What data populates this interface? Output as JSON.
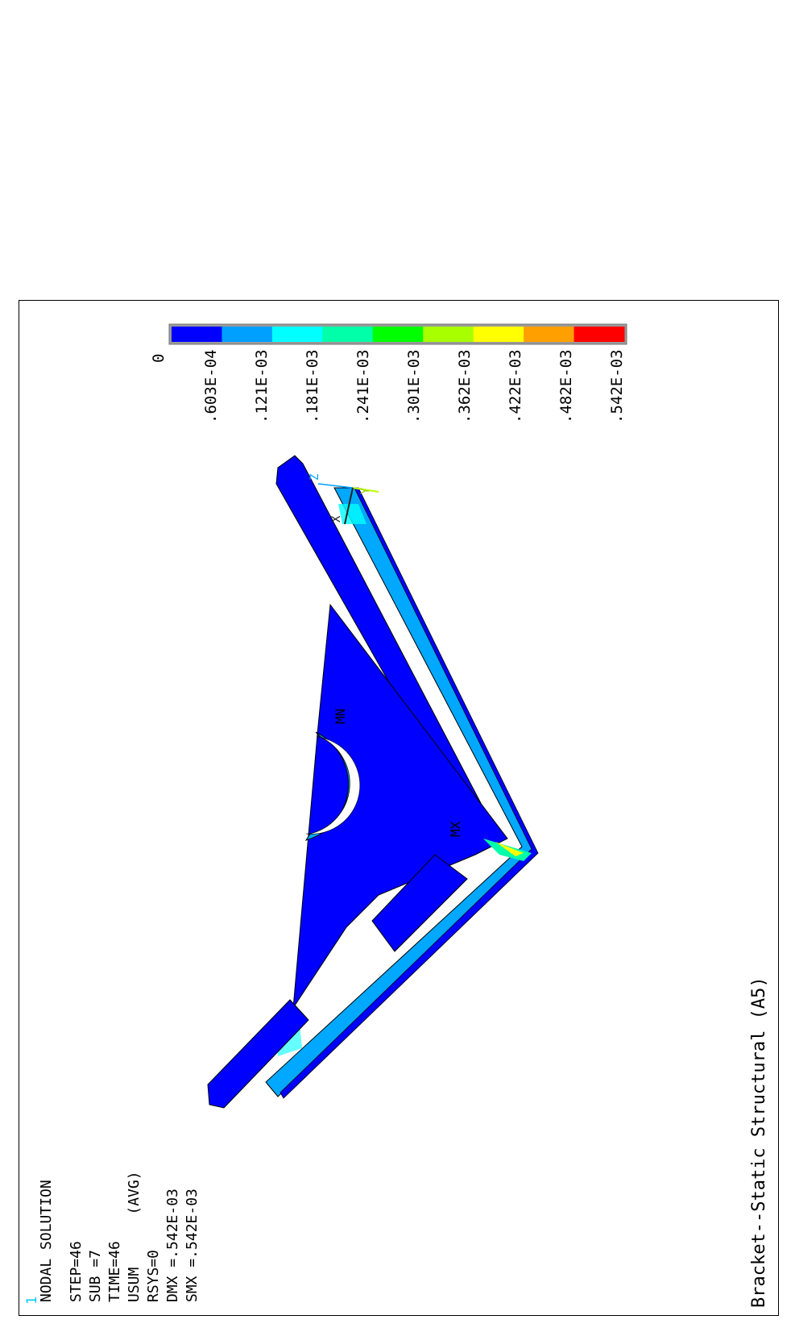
{
  "window_number": "1",
  "info": {
    "lines": [
      "NODAL SOLUTION",
      "STEP=46",
      "SUB =7",
      "TIME=46",
      "USUM      (AVG)",
      "RSYS=0",
      "DMX =.542E-03",
      "SMX =.542E-03"
    ]
  },
  "title": "Bracket--Static Structural (A5)",
  "legend": {
    "labels": [
      "0",
      ".603E-04",
      ".121E-03",
      ".181E-03",
      ".241E-03",
      ".301E-03",
      ".362E-03",
      ".422E-03",
      ".482E-03",
      ".542E-03"
    ],
    "colors": [
      "#0000ff",
      "#00a0ff",
      "#00ffff",
      "#00ffa8",
      "#00ff00",
      "#a8ff00",
      "#ffff00",
      "#ffa000",
      "#ff0000"
    ]
  },
  "markers": {
    "min": "MN",
    "max": "MX"
  },
  "triad": {
    "x": "X",
    "y": "Y",
    "z": "Z"
  },
  "colors": {
    "axis_x": "#202020",
    "axis_y": "#b8ff00",
    "axis_z": "#00a0ff",
    "window_number": "#00c8ff"
  }
}
